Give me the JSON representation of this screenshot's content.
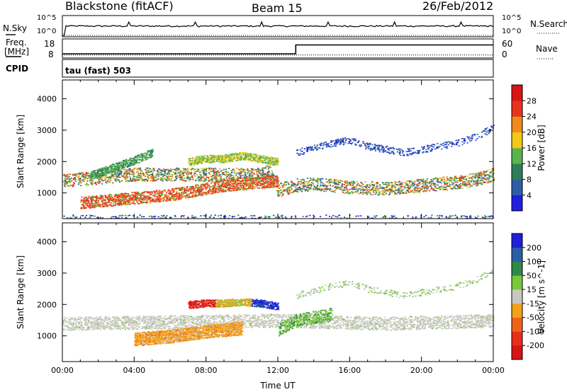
{
  "header": {
    "station": "Blackstone (fitACF)",
    "beam": "Beam 15",
    "date": "26/Feb/2012"
  },
  "strips": {
    "nsky_label": "N.Sky",
    "nsky_ticks": [
      "10^5",
      "10^0"
    ],
    "nsearch_label": "N.Search",
    "freq_label_1": "Freq.",
    "freq_label_2": "[MHz]",
    "freq_ticks": [
      "18",
      "8"
    ],
    "nave_label": "Nave",
    "nave_ticks": [
      "60",
      "0"
    ],
    "cpid_label": "CPID",
    "cpid_value": "tau (fast) 503"
  },
  "chart_data": [
    {
      "type": "line",
      "title": "N.Sky / N.Search",
      "y_scale": "log",
      "ylim": [
        1,
        100000
      ],
      "x_range_hours": [
        0,
        24
      ],
      "series": [
        {
          "name": "N.Sky",
          "style": "solid"
        },
        {
          "name": "N.Search",
          "style": "dotted"
        }
      ]
    },
    {
      "type": "line",
      "title": "Freq. / Nave",
      "ylabel_left": "Freq. [MHz]",
      "ylim_left": [
        8,
        18
      ],
      "ylabel_right": "Nave",
      "ylim_right": [
        0,
        60
      ],
      "x_range_hours": [
        0,
        24
      ],
      "series": [
        {
          "name": "Freq.",
          "x": [
            0,
            13,
            13,
            24
          ],
          "y": [
            10,
            10,
            15,
            15
          ],
          "style": "solid"
        },
        {
          "name": "Nave",
          "x": [
            0,
            24
          ],
          "y": [
            8,
            8
          ],
          "style": "dotted"
        }
      ]
    },
    {
      "type": "heatmap",
      "quantity": "Power",
      "colorbar_label": "Power [dB]",
      "colorbar_ticks": [
        "4",
        "8",
        "12",
        "16",
        "20",
        "24",
        "28"
      ],
      "colorbar_colors": [
        "#1f1fe0",
        "#2e5da6",
        "#2e7f59",
        "#59b44d",
        "#f2c81a",
        "#f08a1a",
        "#e8341f",
        "#d91414"
      ],
      "ylabel": "Slant Range [km]",
      "yticks": [
        1000,
        2000,
        3000,
        4000
      ],
      "ylim": [
        180,
        4600
      ],
      "x_range_hours": [
        0,
        24
      ],
      "features": [
        {
          "name": "main band",
          "x": [
            0,
            1,
            2,
            3,
            4,
            5,
            6,
            7,
            8,
            9,
            10,
            11,
            11.5,
            12,
            13,
            14,
            16,
            18,
            20,
            22,
            23,
            24
          ],
          "range_km": [
            1400,
            1450,
            1500,
            1550,
            1600,
            1600,
            1600,
            1600,
            1600,
            1600,
            1600,
            1600,
            1700,
            1100,
            1250,
            1300,
            1200,
            1150,
            1250,
            1350,
            1450,
            1600
          ]
        },
        {
          "name": "rising band",
          "x": [
            1,
            2,
            3,
            4,
            5,
            6,
            7,
            8,
            9,
            10,
            11,
            12
          ],
          "range_km": [
            700,
            750,
            800,
            850,
            900,
            950,
            1050,
            1150,
            1250,
            1300,
            1350,
            1400
          ]
        },
        {
          "name": "upper echo",
          "x": [
            1.5,
            2,
            3,
            4,
            5
          ],
          "range_km": [
            1550,
            1650,
            1850,
            2050,
            2300
          ]
        },
        {
          "name": "high band",
          "x": [
            7,
            8,
            9,
            10,
            11,
            12
          ],
          "range_km": [
            2000,
            2100,
            2100,
            2200,
            2100,
            2000
          ]
        },
        {
          "name": "far range",
          "x": [
            13,
            15,
            16,
            17,
            18,
            19,
            20,
            21,
            22,
            23,
            24
          ],
          "range_km": [
            2300,
            2600,
            2700,
            2500,
            2400,
            2300,
            2400,
            2500,
            2600,
            2800,
            3100
          ]
        }
      ]
    },
    {
      "type": "heatmap",
      "quantity": "Velocity",
      "colorbar_label": "Velocity [m s^-1]",
      "colorbar_ticks": [
        "200",
        "100",
        "50",
        "15",
        "-15",
        "-50",
        "-100",
        "-200"
      ],
      "colorbar_colors": [
        "#1f1fd9",
        "#2a5ea6",
        "#2e8a4a",
        "#78c83a",
        "#c8c8c0",
        "#f2a11a",
        "#f0621a",
        "#e82d1a",
        "#d91414"
      ],
      "ylabel": "Slant Range [km]",
      "yticks": [
        1000,
        2000,
        3000,
        4000
      ],
      "ylim": [
        180,
        4600
      ],
      "xlabel": "Time UT",
      "xticks": [
        "00:00",
        "04:00",
        "08:00",
        "12:00",
        "16:00",
        "20:00",
        "00:00"
      ],
      "x_range_hours": [
        0,
        24
      ],
      "features": [
        {
          "name": "ground scatter band",
          "x": [
            0,
            6,
            12,
            18,
            24
          ],
          "range_km": [
            1400,
            1450,
            1500,
            1400,
            1500
          ]
        },
        {
          "name": "negative velocity region",
          "x": [
            4,
            6,
            8,
            10
          ],
          "range_km": [
            900,
            1000,
            1150,
            1250
          ]
        },
        {
          "name": "mixed velocity band",
          "x": [
            7,
            8,
            9,
            10,
            11,
            12
          ],
          "range_km": [
            2000,
            2050,
            2050,
            2100,
            2050,
            1950
          ]
        }
      ]
    }
  ]
}
